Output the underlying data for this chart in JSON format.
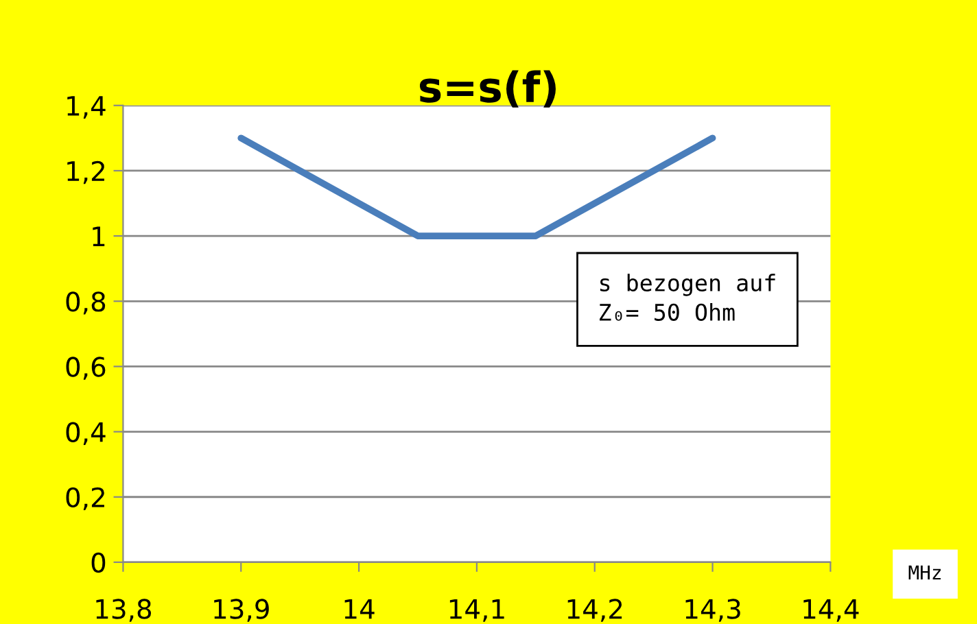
{
  "chart_data": {
    "type": "line",
    "title": "s=s(f)",
    "xlabel": "MHz",
    "x": [
      13.9,
      14.0,
      14.05,
      14.1,
      14.15,
      14.2,
      14.3
    ],
    "series": [
      {
        "color": "#4a7ebb",
        "values": [
          1.3,
          1.1,
          1.0,
          1.0,
          1.0,
          1.1,
          1.3
        ]
      }
    ],
    "xlim": [
      13.8,
      14.4
    ],
    "xticks": [
      {
        "value": 13.8,
        "label": "13,8"
      },
      {
        "value": 13.9,
        "label": "13,9"
      },
      14,
      {
        "value": 14.1,
        "label": "14,1"
      },
      {
        "value": 14.2,
        "label": "14,2"
      },
      {
        "value": 14.3,
        "label": "14,3"
      },
      {
        "value": 14.4,
        "label": "14,4"
      }
    ],
    "ylim": [
      0,
      1.4
    ],
    "yticks": [
      0,
      {
        "value": 0.2,
        "label": "0,2"
      },
      {
        "value": 0.4,
        "label": "0,4"
      },
      {
        "value": 0.6,
        "label": "0,6"
      },
      {
        "value": 0.8,
        "label": "0,8"
      },
      1,
      {
        "value": 1.2,
        "label": "1,2"
      },
      {
        "value": 1.4,
        "label": "1,4"
      }
    ],
    "grid": "y",
    "legend": false,
    "marker": "none",
    "line_style": "solid",
    "annotations": [
      "s bezogen auf\nZ₀= 50 Ohm"
    ]
  }
}
